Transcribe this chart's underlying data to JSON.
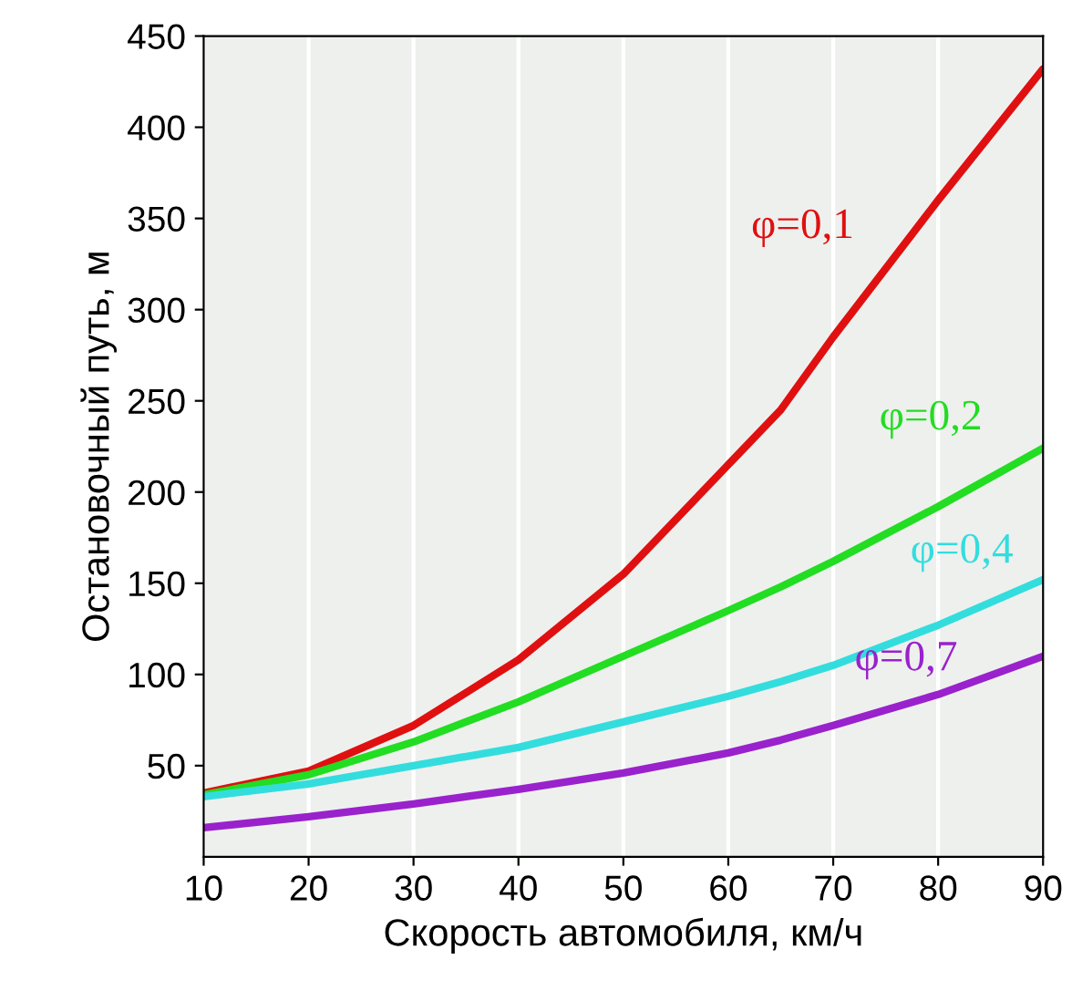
{
  "chart_data": {
    "type": "line",
    "xlabel": "Скорость автомобиля, км/ч",
    "ylabel": "Остановочный путь, м",
    "x": [
      10,
      20,
      30,
      40,
      50,
      60,
      65,
      70,
      80,
      90
    ],
    "series": [
      {
        "name": "φ=0,1",
        "color": "#e01010",
        "values": [
          35,
          47,
          72,
          108,
          155,
          215,
          245,
          285,
          360,
          432
        ]
      },
      {
        "name": "φ=0,2",
        "color": "#22dd22",
        "values": [
          34,
          45,
          63,
          85,
          110,
          135,
          148,
          162,
          192,
          224
        ]
      },
      {
        "name": "φ=0,4",
        "color": "#33dddd",
        "values": [
          33,
          40,
          50,
          60,
          74,
          88,
          96,
          105,
          127,
          152
        ]
      },
      {
        "name": "φ=0,7",
        "color": "#9922cc",
        "values": [
          16,
          22,
          29,
          37,
          46,
          57,
          64,
          72,
          89,
          110
        ]
      }
    ],
    "xlim": [
      10,
      90
    ],
    "xticks": [
      10,
      20,
      30,
      40,
      50,
      60,
      70,
      80,
      90
    ],
    "ylim": [
      0,
      450
    ],
    "yticks": [
      50,
      100,
      150,
      200,
      250,
      300,
      350,
      400,
      450
    ],
    "grid": "x",
    "legend": false,
    "marker": "none",
    "line_style": "solid"
  }
}
